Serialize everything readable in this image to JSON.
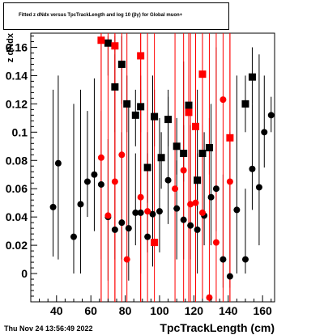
{
  "chart_data": {
    "type": "scatter",
    "title": "Fitted  z  dNdx  versus TpcTrackLength and log  10  (βγ) for Global muon+",
    "xlabel": "TpcTrackLength (cm)",
    "ylabel": "z dNdx",
    "xlim": [
      25,
      167
    ],
    "ylim": [
      -0.02,
      0.17
    ],
    "x_ticks": [
      40,
      60,
      80,
      100,
      120,
      140,
      160
    ],
    "y_ticks": [
      0,
      0.02,
      0.04,
      0.06,
      0.08,
      0.1,
      0.12,
      0.14,
      0.16
    ],
    "series": [
      {
        "marker": "circle",
        "color": "#000000",
        "points": [
          {
            "x": 38,
            "y": 0.047,
            "lo": 0.012,
            "hi": 0.13
          },
          {
            "x": 41,
            "y": 0.078,
            "lo": 0.01,
            "hi": 0.14
          },
          {
            "x": 50,
            "y": 0.026,
            "lo": 0.0,
            "hi": 0.12
          },
          {
            "x": 54,
            "y": 0.049,
            "lo": 0.0,
            "hi": 0.13
          },
          {
            "x": 58,
            "y": 0.065,
            "lo": 0.04,
            "hi": 0.115
          },
          {
            "x": 62,
            "y": 0.07,
            "lo": 0.03,
            "hi": 0.138
          },
          {
            "x": 66,
            "y": 0.063,
            "lo": 0.01,
            "hi": 0.115
          },
          {
            "x": 70,
            "y": 0.04,
            "lo": -0.005,
            "hi": 0.095
          },
          {
            "x": 74,
            "y": 0.031,
            "lo": 0.01,
            "hi": 0.155
          },
          {
            "x": 78,
            "y": 0.036,
            "lo": 0.01,
            "hi": 0.1
          },
          {
            "x": 82,
            "y": 0.032,
            "lo": -0.005,
            "hi": 0.12
          },
          {
            "x": 86,
            "y": 0.043,
            "lo": 0.02,
            "hi": 0.085
          },
          {
            "x": 89,
            "y": 0.043,
            "lo": 0.0,
            "hi": 0.13
          },
          {
            "x": 93,
            "y": 0.026,
            "lo": 0.015,
            "hi": 0.085
          },
          {
            "x": 96,
            "y": 0.042,
            "lo": 0.005,
            "hi": 0.14
          },
          {
            "x": 100,
            "y": 0.044,
            "lo": 0.015,
            "hi": 0.11
          },
          {
            "x": 105,
            "y": 0.066,
            "lo": 0.035,
            "hi": 0.125
          },
          {
            "x": 110,
            "y": 0.046,
            "lo": 0.01,
            "hi": 0.08
          },
          {
            "x": 114,
            "y": 0.038,
            "lo": 0.01,
            "hi": 0.15
          },
          {
            "x": 118,
            "y": 0.034,
            "lo": 0.01,
            "hi": 0.105
          },
          {
            "x": 122,
            "y": 0.031,
            "lo": 0.0,
            "hi": 0.13
          },
          {
            "x": 126,
            "y": 0.041,
            "lo": 0.02,
            "hi": 0.1
          },
          {
            "x": 130,
            "y": 0.054,
            "lo": 0.02,
            "hi": 0.12
          },
          {
            "x": 133,
            "y": 0.06,
            "lo": 0.03,
            "hi": 0.16
          },
          {
            "x": 137,
            "y": 0.01,
            "lo": -0.01,
            "hi": 0.07
          },
          {
            "x": 141,
            "y": -0.002,
            "lo": -0.01,
            "hi": 0.1
          },
          {
            "x": 145,
            "y": 0.045,
            "lo": 0.0,
            "hi": 0.14
          },
          {
            "x": 150,
            "y": 0.01,
            "lo": 0.0,
            "hi": 0.06
          },
          {
            "x": 154,
            "y": 0.074,
            "lo": 0.045,
            "hi": 0.12
          },
          {
            "x": 158,
            "y": 0.061,
            "lo": 0.02,
            "hi": 0.155
          },
          {
            "x": 161,
            "y": 0.1,
            "lo": 0.075,
            "hi": 0.14
          },
          {
            "x": 165,
            "y": 0.112,
            "lo": 0.1,
            "hi": 0.125
          }
        ]
      },
      {
        "marker": "square",
        "color": "#000000",
        "points": [
          {
            "x": 70,
            "y": 0.163,
            "lo": 0.14,
            "hi": 0.168
          },
          {
            "x": 74,
            "y": 0.132,
            "lo": 0.1,
            "hi": 0.168
          },
          {
            "x": 78,
            "y": 0.148,
            "lo": 0.12,
            "hi": 0.168
          },
          {
            "x": 81,
            "y": 0.12,
            "lo": 0.1,
            "hi": 0.14
          },
          {
            "x": 86,
            "y": 0.112,
            "lo": 0.09,
            "hi": 0.13
          },
          {
            "x": 89,
            "y": 0.118,
            "lo": 0.1,
            "hi": 0.14
          },
          {
            "x": 93,
            "y": 0.075,
            "lo": 0.05,
            "hi": 0.1
          },
          {
            "x": 97,
            "y": 0.111,
            "lo": 0.09,
            "hi": 0.13
          },
          {
            "x": 101,
            "y": 0.082,
            "lo": 0.06,
            "hi": 0.1
          },
          {
            "x": 105,
            "y": 0.109,
            "lo": 0.09,
            "hi": 0.13
          },
          {
            "x": 110,
            "y": 0.09,
            "lo": 0.07,
            "hi": 0.11
          },
          {
            "x": 114,
            "y": 0.085,
            "lo": 0.065,
            "hi": 0.105
          },
          {
            "x": 117,
            "y": 0.119,
            "lo": 0.1,
            "hi": 0.14
          },
          {
            "x": 122,
            "y": 0.066,
            "lo": 0.045,
            "hi": 0.085
          },
          {
            "x": 125,
            "y": 0.085,
            "lo": 0.065,
            "hi": 0.105
          },
          {
            "x": 129,
            "y": 0.089,
            "lo": 0.07,
            "hi": 0.11
          },
          {
            "x": 150,
            "y": 0.12,
            "lo": 0.1,
            "hi": 0.14
          },
          {
            "x": 154,
            "y": 0.139,
            "lo": 0.12,
            "hi": 0.16
          }
        ]
      },
      {
        "marker": "square",
        "color": "#ff0000",
        "points": [
          {
            "x": 66,
            "y": 0.165,
            "lo": -0.02,
            "hi": 0.17
          },
          {
            "x": 74,
            "y": 0.161,
            "lo": -0.02,
            "hi": 0.17
          },
          {
            "x": 89,
            "y": 0.154,
            "lo": -0.02,
            "hi": 0.17
          },
          {
            "x": 97,
            "y": 0.022,
            "lo": -0.02,
            "hi": 0.17
          },
          {
            "x": 117,
            "y": 0.114,
            "lo": -0.02,
            "hi": 0.17
          },
          {
            "x": 121,
            "y": 0.104,
            "lo": -0.02,
            "hi": 0.17
          },
          {
            "x": 125,
            "y": 0.141,
            "lo": -0.02,
            "hi": 0.17
          },
          {
            "x": 141,
            "y": 0.096,
            "lo": -0.02,
            "hi": 0.17
          }
        ]
      },
      {
        "marker": "circle",
        "color": "#ff0000",
        "points": [
          {
            "x": 66,
            "y": 0.082,
            "lo": -0.02,
            "hi": 0.17
          },
          {
            "x": 70,
            "y": 0.041,
            "lo": -0.02,
            "hi": 0.17
          },
          {
            "x": 74,
            "y": 0.065,
            "lo": -0.02,
            "hi": 0.17
          },
          {
            "x": 78,
            "y": 0.084,
            "lo": -0.02,
            "hi": 0.17
          },
          {
            "x": 81,
            "y": 0.01,
            "lo": -0.02,
            "hi": 0.17
          },
          {
            "x": 89,
            "y": 0.054,
            "lo": -0.02,
            "hi": 0.17
          },
          {
            "x": 93,
            "y": 0.044,
            "lo": -0.02,
            "hi": 0.17
          },
          {
            "x": 109,
            "y": 0.06,
            "lo": -0.02,
            "hi": 0.17
          },
          {
            "x": 114,
            "y": 0.073,
            "lo": -0.02,
            "hi": 0.17
          },
          {
            "x": 118,
            "y": 0.049,
            "lo": -0.02,
            "hi": 0.17
          },
          {
            "x": 121,
            "y": 0.05,
            "lo": -0.02,
            "hi": 0.17
          },
          {
            "x": 125,
            "y": 0.043,
            "lo": -0.02,
            "hi": 0.17
          },
          {
            "x": 129,
            "y": -0.017,
            "lo": -0.02,
            "hi": 0.17
          },
          {
            "x": 133,
            "y": 0.022,
            "lo": -0.02,
            "hi": 0.17
          },
          {
            "x": 137,
            "y": 0.123,
            "lo": -0.02,
            "hi": 0.17
          },
          {
            "x": 141,
            "y": 0.065,
            "lo": -0.02,
            "hi": 0.17
          }
        ]
      }
    ]
  },
  "footer": {
    "timestamp": "Thu Nov 24 13:56:49 2022"
  }
}
